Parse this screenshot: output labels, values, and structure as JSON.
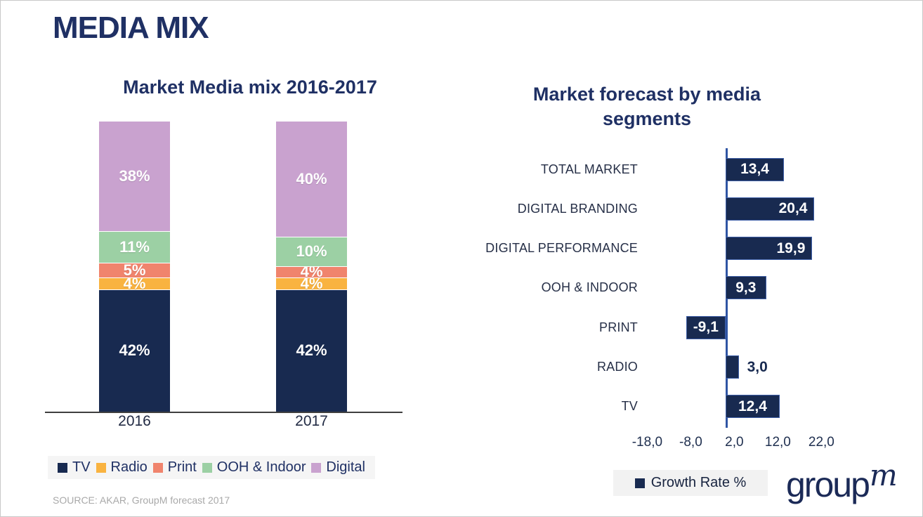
{
  "page": {
    "title": "MEDIA MIX",
    "source": "SOURCE: AKAR, GroupM forecast 2017",
    "logo_text": "group",
    "logo_m": "m"
  },
  "colors": {
    "navy": "#182A50",
    "amber": "#F9B340",
    "salmon": "#F0846D",
    "green": "#9CD0A4",
    "plum": "#C9A2CF"
  },
  "chart_data": [
    {
      "type": "bar",
      "subtype": "stacked-column",
      "title": "Market Media mix 2016-2017",
      "categories": [
        "2016",
        "2017"
      ],
      "series": [
        {
          "name": "TV",
          "color_key": "navy",
          "values": [
            42,
            42
          ],
          "labels": [
            "42%",
            "42%"
          ]
        },
        {
          "name": "Radio",
          "color_key": "amber",
          "values": [
            4,
            4
          ],
          "labels": [
            "4%",
            "4%"
          ]
        },
        {
          "name": "Print",
          "color_key": "salmon",
          "values": [
            5,
            4
          ],
          "labels": [
            "5%",
            "4%"
          ]
        },
        {
          "name": "OOH & Indoor",
          "color_key": "green",
          "values": [
            11,
            10
          ],
          "labels": [
            "11%",
            "10%"
          ]
        },
        {
          "name": "Digital",
          "color_key": "plum",
          "values": [
            38,
            40
          ],
          "labels": [
            "38%",
            "40%"
          ]
        }
      ],
      "xlabel": "",
      "ylabel": "",
      "ylim": [
        0,
        100
      ],
      "grid": false,
      "legend_position": "bottom"
    },
    {
      "type": "bar",
      "subtype": "horizontal",
      "title": "Market forecast by media segments",
      "categories": [
        "TOTAL MARKET",
        "DIGITAL BRANDING",
        "DIGITAL PERFORMANCE",
        "OOH & INDOOR",
        "PRINT",
        "RADIO",
        "TV"
      ],
      "values": [
        13.4,
        20.4,
        19.9,
        9.3,
        -9.1,
        3.0,
        12.4
      ],
      "value_labels": [
        "13,4",
        "20,4",
        "19,9",
        "9,3",
        "-9,1",
        "3,0",
        "12,4"
      ],
      "series_name": "Growth Rate %",
      "legend": [
        "Growth Rate %"
      ],
      "xticks": [
        -18,
        -8,
        2,
        12,
        22
      ],
      "xtick_labels": [
        "-18,0",
        "-8,0",
        "2,0",
        "12,0",
        "22,0"
      ],
      "xlabel": "",
      "ylabel": "",
      "xlim": [
        -20,
        25
      ],
      "grid": false,
      "legend_position": "bottom"
    }
  ]
}
